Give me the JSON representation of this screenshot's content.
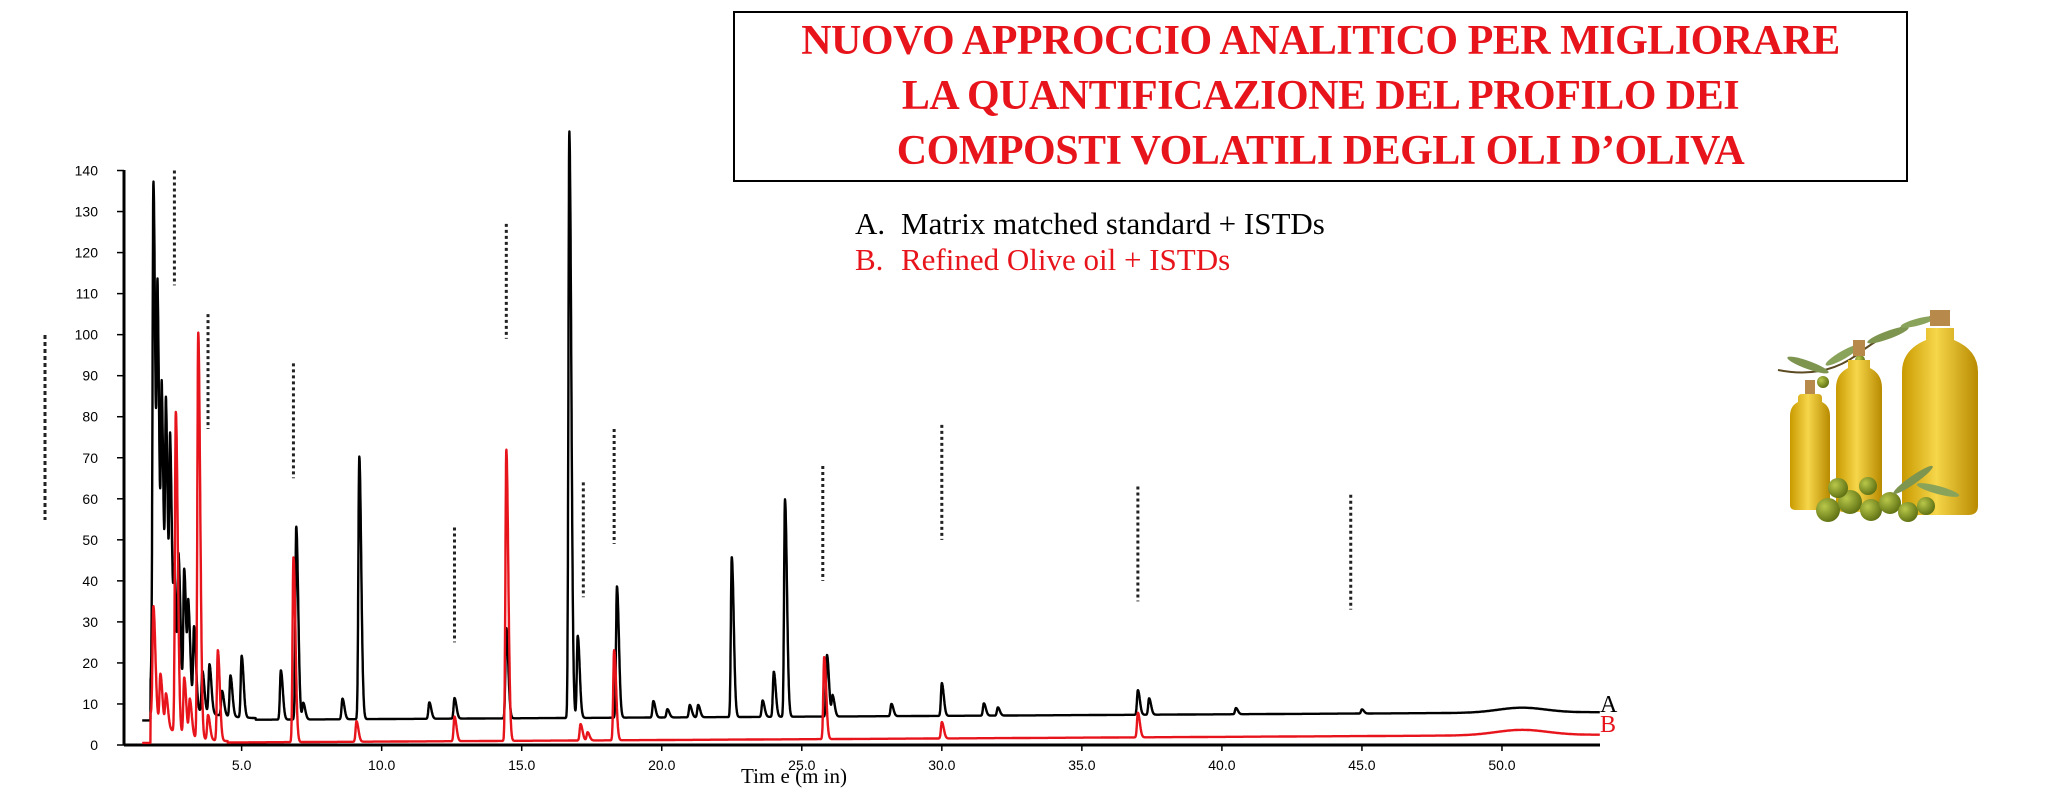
{
  "title_lines": [
    "NUOVO APPROCCIO ANALITICO PER MIGLIORARE",
    "LA QUANTIFICAZIONE DEL PROFILO DEI",
    "COMPOSTI VOLATILI DEGLI OLI D’OLIVA"
  ],
  "legend": {
    "a_letter": "A.",
    "a_text": "Matrix matched standard + ISTDs",
    "b_letter": "B.",
    "b_text": "Refined Olive oil + ISTDs"
  },
  "chart_data": {
    "type": "line",
    "title": "",
    "xlabel": "Tim e (m in)",
    "ylabel": "",
    "xlim": [
      0.8,
      53.5
    ],
    "ylim": [
      0,
      145
    ],
    "x_ticks": [
      5.0,
      10.0,
      15.0,
      20.0,
      25.0,
      30.0,
      35.0,
      40.0,
      45.0,
      50.0
    ],
    "x_tick_labels": [
      "5.0",
      "10.0",
      "15.0",
      "20.0",
      "25.0",
      "30.0",
      "35.0",
      "40.0",
      "45.0",
      "50.0"
    ],
    "y_ticks": [
      0,
      10,
      20,
      30,
      40,
      50,
      60,
      70,
      80,
      90,
      100,
      110,
      120,
      130,
      140
    ],
    "y_tick_labels": [
      "0",
      "10",
      "20",
      "30",
      "40",
      "50",
      "60",
      "70",
      "80",
      "90",
      "100",
      "110",
      "120",
      "130",
      "140"
    ],
    "grid": false,
    "series": [
      {
        "name": "A",
        "color": "#000000",
        "baseline_start": 6,
        "baseline_end": 8,
        "rise": {
          "center": 50.7,
          "width": 1.2,
          "height": 1.2
        },
        "peaks": [
          {
            "t": 1.85,
            "h": 123
          },
          {
            "t": 2.0,
            "h": 87
          },
          {
            "t": 2.15,
            "h": 67
          },
          {
            "t": 2.3,
            "h": 66
          },
          {
            "t": 2.45,
            "h": 58
          },
          {
            "t": 2.6,
            "h": 27
          },
          {
            "t": 2.75,
            "h": 34
          },
          {
            "t": 2.95,
            "h": 33
          },
          {
            "t": 3.1,
            "h": 23
          },
          {
            "t": 3.3,
            "h": 20
          },
          {
            "t": 3.6,
            "h": 10
          },
          {
            "t": 3.85,
            "h": 12
          },
          {
            "t": 4.3,
            "h": 6
          },
          {
            "t": 4.6,
            "h": 10
          },
          {
            "t": 5.0,
            "h": 15
          },
          {
            "t": 6.4,
            "h": 12
          },
          {
            "t": 6.95,
            "h": 47
          },
          {
            "t": 7.2,
            "h": 4
          },
          {
            "t": 8.6,
            "h": 5
          },
          {
            "t": 9.2,
            "h": 64
          },
          {
            "t": 11.7,
            "h": 4
          },
          {
            "t": 12.6,
            "h": 5
          },
          {
            "t": 14.45,
            "h": 22
          },
          {
            "t": 16.7,
            "h": 143
          },
          {
            "t": 17.0,
            "h": 20
          },
          {
            "t": 18.4,
            "h": 32
          },
          {
            "t": 19.7,
            "h": 4
          },
          {
            "t": 20.2,
            "h": 2
          },
          {
            "t": 21.0,
            "h": 3
          },
          {
            "t": 21.3,
            "h": 3
          },
          {
            "t": 22.5,
            "h": 39
          },
          {
            "t": 23.6,
            "h": 4
          },
          {
            "t": 24.0,
            "h": 11
          },
          {
            "t": 24.4,
            "h": 53
          },
          {
            "t": 25.9,
            "h": 15
          },
          {
            "t": 26.1,
            "h": 5
          },
          {
            "t": 28.2,
            "h": 3
          },
          {
            "t": 30.0,
            "h": 8
          },
          {
            "t": 31.5,
            "h": 3
          },
          {
            "t": 32.0,
            "h": 2
          },
          {
            "t": 37.0,
            "h": 6
          },
          {
            "t": 37.4,
            "h": 4
          },
          {
            "t": 40.5,
            "h": 1.5
          },
          {
            "t": 45.0,
            "h": 1
          }
        ]
      },
      {
        "name": "B",
        "color": "#e8141c",
        "baseline_start": 0.5,
        "baseline_end": 2.5,
        "rise": {
          "center": 50.7,
          "width": 1.3,
          "height": 1.3
        },
        "peaks": [
          {
            "t": 1.85,
            "h": 27
          },
          {
            "t": 2.1,
            "h": 12
          },
          {
            "t": 2.3,
            "h": 8
          },
          {
            "t": 2.65,
            "h": 78
          },
          {
            "t": 2.95,
            "h": 14
          },
          {
            "t": 3.15,
            "h": 9
          },
          {
            "t": 3.45,
            "h": 99
          },
          {
            "t": 3.8,
            "h": 6
          },
          {
            "t": 4.15,
            "h": 22
          },
          {
            "t": 6.85,
            "h": 45
          },
          {
            "t": 9.1,
            "h": 5
          },
          {
            "t": 12.6,
            "h": 6
          },
          {
            "t": 14.45,
            "h": 71
          },
          {
            "t": 17.1,
            "h": 4
          },
          {
            "t": 17.35,
            "h": 2
          },
          {
            "t": 18.3,
            "h": 22
          },
          {
            "t": 25.8,
            "h": 20
          },
          {
            "t": 30.0,
            "h": 4
          },
          {
            "t": 37.0,
            "h": 6
          }
        ]
      }
    ],
    "annotations": [
      "A",
      "B"
    ]
  }
}
